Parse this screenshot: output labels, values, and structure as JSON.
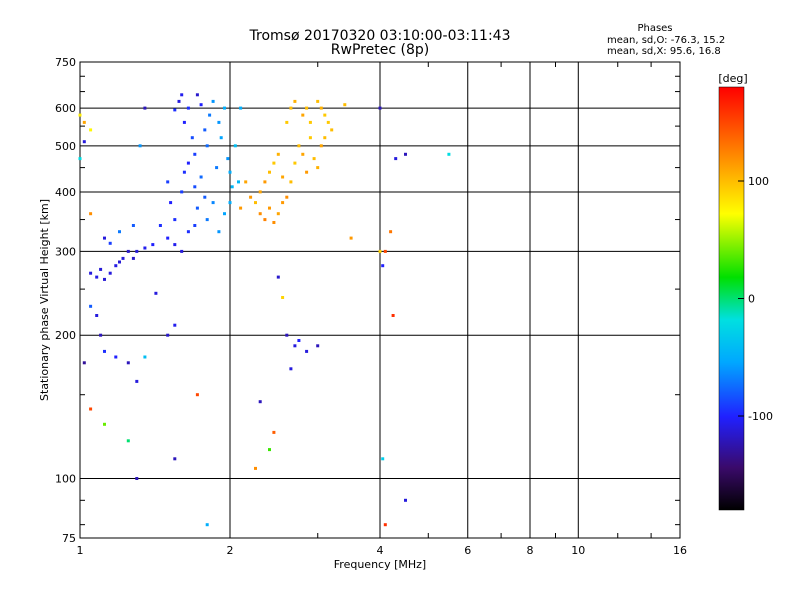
{
  "header": {
    "title": "Tromsø 20170320 03:10:00-03:11:43",
    "subtitle": "RwPretec (8p)"
  },
  "stats": {
    "heading": "Phases",
    "line_o": "mean, sd,O: -76.3, 15.2",
    "line_x": "mean, sd,X:  95.6, 16.8"
  },
  "colorbar": {
    "label": "[deg]",
    "ticks": [
      {
        "value": 100,
        "label": "100"
      },
      {
        "value": 0,
        "label": "0"
      },
      {
        "value": -100,
        "label": "-100"
      }
    ],
    "range": [
      -180,
      180
    ]
  },
  "chart_data": {
    "type": "scatter",
    "title": "Tromsø 20170320 03:10:00-03:11:43",
    "subtitle": "RwPretec (8p)",
    "xlabel": "Frequency [MHz]",
    "ylabel": "Stationary phase Virtual Height [km]",
    "x_scale": "log",
    "y_scale": "log",
    "xlim": [
      1,
      16
    ],
    "ylim": [
      75,
      750
    ],
    "grid": true,
    "x_ticks": [
      {
        "value": 1,
        "label": "1"
      },
      {
        "value": 2,
        "label": "2"
      },
      {
        "value": 4,
        "label": "4"
      },
      {
        "value": 6,
        "label": "6"
      },
      {
        "value": 8,
        "label": "8"
      },
      {
        "value": 10,
        "label": "10"
      },
      {
        "value": 16,
        "label": "16"
      }
    ],
    "y_ticks": [
      {
        "value": 75,
        "label": "75"
      },
      {
        "value": 100,
        "label": "100"
      },
      {
        "value": 200,
        "label": "200"
      },
      {
        "value": 300,
        "label": "300"
      },
      {
        "value": 400,
        "label": "400"
      },
      {
        "value": 500,
        "label": "500"
      },
      {
        "value": 600,
        "label": "600"
      },
      {
        "value": 750,
        "label": "750"
      }
    ],
    "x_minor_ticks": [
      3,
      5,
      7,
      9,
      12,
      14
    ],
    "y_minor_ticks": [
      80,
      90,
      150,
      250,
      350,
      450,
      550,
      650,
      700
    ],
    "color_dimension": "phase [deg]",
    "points": [
      [
        1.55,
        595,
        -95
      ],
      [
        1.58,
        620,
        -110
      ],
      [
        1.6,
        640,
        -105
      ],
      [
        1.62,
        560,
        -100
      ],
      [
        1.65,
        600,
        -95
      ],
      [
        1.68,
        520,
        -85
      ],
      [
        1.7,
        480,
        -90
      ],
      [
        1.72,
        640,
        -115
      ],
      [
        1.75,
        610,
        -100
      ],
      [
        1.78,
        540,
        -80
      ],
      [
        1.8,
        500,
        -75
      ],
      [
        1.82,
        580,
        -70
      ],
      [
        1.85,
        620,
        -60
      ],
      [
        1.88,
        450,
        -70
      ],
      [
        1.9,
        560,
        -60
      ],
      [
        1.92,
        520,
        -55
      ],
      [
        1.95,
        600,
        -50
      ],
      [
        1.98,
        470,
        -60
      ],
      [
        2.0,
        440,
        -50
      ],
      [
        2.02,
        410,
        -45
      ],
      [
        2.05,
        500,
        -40
      ],
      [
        2.08,
        420,
        -45
      ],
      [
        2.1,
        600,
        -50
      ],
      [
        1.5,
        420,
        -90
      ],
      [
        1.52,
        380,
        -100
      ],
      [
        1.55,
        350,
        -95
      ],
      [
        1.6,
        400,
        -90
      ],
      [
        1.62,
        440,
        -95
      ],
      [
        1.65,
        460,
        -100
      ],
      [
        1.7,
        410,
        -85
      ],
      [
        1.72,
        370,
        -80
      ],
      [
        1.75,
        430,
        -75
      ],
      [
        1.78,
        390,
        -80
      ],
      [
        1.8,
        350,
        -70
      ],
      [
        1.85,
        380,
        -65
      ],
      [
        1.9,
        330,
        -60
      ],
      [
        1.95,
        360,
        -55
      ],
      [
        2.0,
        380,
        -50
      ],
      [
        1.45,
        340,
        -95
      ],
      [
        1.5,
        320,
        -100
      ],
      [
        1.55,
        310,
        -105
      ],
      [
        1.6,
        300,
        -110
      ],
      [
        1.65,
        330,
        -95
      ],
      [
        1.7,
        340,
        -90
      ],
      [
        1.4,
        310,
        -100
      ],
      [
        1.35,
        305,
        -105
      ],
      [
        1.3,
        300,
        -110
      ],
      [
        1.28,
        290,
        -115
      ],
      [
        1.25,
        300,
        -115
      ],
      [
        1.22,
        290,
        -110
      ],
      [
        1.2,
        285,
        -112
      ],
      [
        1.18,
        280,
        -108
      ],
      [
        1.15,
        270,
        -110
      ],
      [
        1.1,
        275,
        -112
      ],
      [
        1.05,
        270,
        -110
      ],
      [
        1.08,
        265,
        -108
      ],
      [
        1.12,
        262,
        -112
      ],
      [
        2.25,
        380,
        100
      ],
      [
        2.3,
        400,
        110
      ],
      [
        2.35,
        420,
        115
      ],
      [
        2.4,
        440,
        100
      ],
      [
        2.45,
        460,
        95
      ],
      [
        2.5,
        480,
        105
      ],
      [
        2.55,
        430,
        110
      ],
      [
        2.6,
        390,
        120
      ],
      [
        2.65,
        420,
        100
      ],
      [
        2.7,
        460,
        95
      ],
      [
        2.75,
        500,
        100
      ],
      [
        2.8,
        480,
        110
      ],
      [
        2.85,
        440,
        115
      ],
      [
        2.9,
        520,
        95
      ],
      [
        2.95,
        470,
        100
      ],
      [
        3.0,
        450,
        105
      ],
      [
        3.05,
        500,
        110
      ],
      [
        3.1,
        520,
        100
      ],
      [
        3.15,
        560,
        95
      ],
      [
        3.2,
        540,
        100
      ],
      [
        2.6,
        560,
        95
      ],
      [
        2.65,
        600,
        100
      ],
      [
        2.7,
        620,
        105
      ],
      [
        2.8,
        580,
        110
      ],
      [
        2.85,
        600,
        100
      ],
      [
        2.9,
        560,
        95
      ],
      [
        3.0,
        620,
        100
      ],
      [
        3.05,
        600,
        105
      ],
      [
        3.1,
        580,
        95
      ],
      [
        2.3,
        360,
        120
      ],
      [
        2.35,
        350,
        125
      ],
      [
        2.4,
        370,
        115
      ],
      [
        2.45,
        345,
        120
      ],
      [
        2.5,
        360,
        110
      ],
      [
        2.55,
        380,
        115
      ],
      [
        2.2,
        390,
        115
      ],
      [
        2.15,
        420,
        110
      ],
      [
        2.1,
        370,
        115
      ],
      [
        1.0,
        580,
        80
      ],
      [
        1.02,
        560,
        110
      ],
      [
        1.05,
        540,
        75
      ],
      [
        1.0,
        470,
        -20
      ],
      [
        1.02,
        510,
        -110
      ],
      [
        1.05,
        360,
        120
      ],
      [
        1.12,
        320,
        -110
      ],
      [
        1.15,
        312,
        -90
      ],
      [
        1.2,
        330,
        -70
      ],
      [
        1.28,
        340,
        -80
      ],
      [
        1.32,
        500,
        -60
      ],
      [
        1.35,
        600,
        -120
      ],
      [
        1.08,
        220,
        -110
      ],
      [
        1.05,
        230,
        -80
      ],
      [
        1.1,
        200,
        -120
      ],
      [
        1.12,
        185,
        -95
      ],
      [
        1.18,
        180,
        -100
      ],
      [
        1.25,
        175,
        -120
      ],
      [
        1.3,
        160,
        -110
      ],
      [
        1.35,
        180,
        -40
      ],
      [
        1.02,
        175,
        -130
      ],
      [
        1.05,
        140,
        150
      ],
      [
        1.12,
        130,
        40
      ],
      [
        1.25,
        120,
        0
      ],
      [
        1.3,
        100,
        -120
      ],
      [
        1.42,
        245,
        -110
      ],
      [
        1.5,
        200,
        -115
      ],
      [
        1.55,
        210,
        -105
      ],
      [
        1.55,
        110,
        -120
      ],
      [
        1.72,
        150,
        150
      ],
      [
        1.8,
        80,
        -50
      ],
      [
        2.25,
        105,
        120
      ],
      [
        2.3,
        145,
        -120
      ],
      [
        2.4,
        115,
        30
      ],
      [
        2.45,
        125,
        140
      ],
      [
        2.5,
        265,
        -115
      ],
      [
        2.55,
        240,
        90
      ],
      [
        2.6,
        200,
        -120
      ],
      [
        2.65,
        170,
        -110
      ],
      [
        2.7,
        190,
        -110
      ],
      [
        2.75,
        195,
        -100
      ],
      [
        2.85,
        185,
        -110
      ],
      [
        3.0,
        190,
        -120
      ],
      [
        4.0,
        300,
        90
      ],
      [
        4.05,
        280,
        -100
      ],
      [
        4.1,
        300,
        150
      ],
      [
        4.2,
        330,
        130
      ],
      [
        4.25,
        220,
        160
      ],
      [
        4.3,
        470,
        -110
      ],
      [
        4.5,
        480,
        -120
      ],
      [
        4.0,
        600,
        -120
      ],
      [
        4.05,
        110,
        -30
      ],
      [
        4.1,
        80,
        160
      ],
      [
        4.5,
        90,
        -110
      ],
      [
        5.5,
        480,
        -20
      ],
      [
        3.5,
        320,
        115
      ],
      [
        3.4,
        610,
        100
      ]
    ]
  }
}
